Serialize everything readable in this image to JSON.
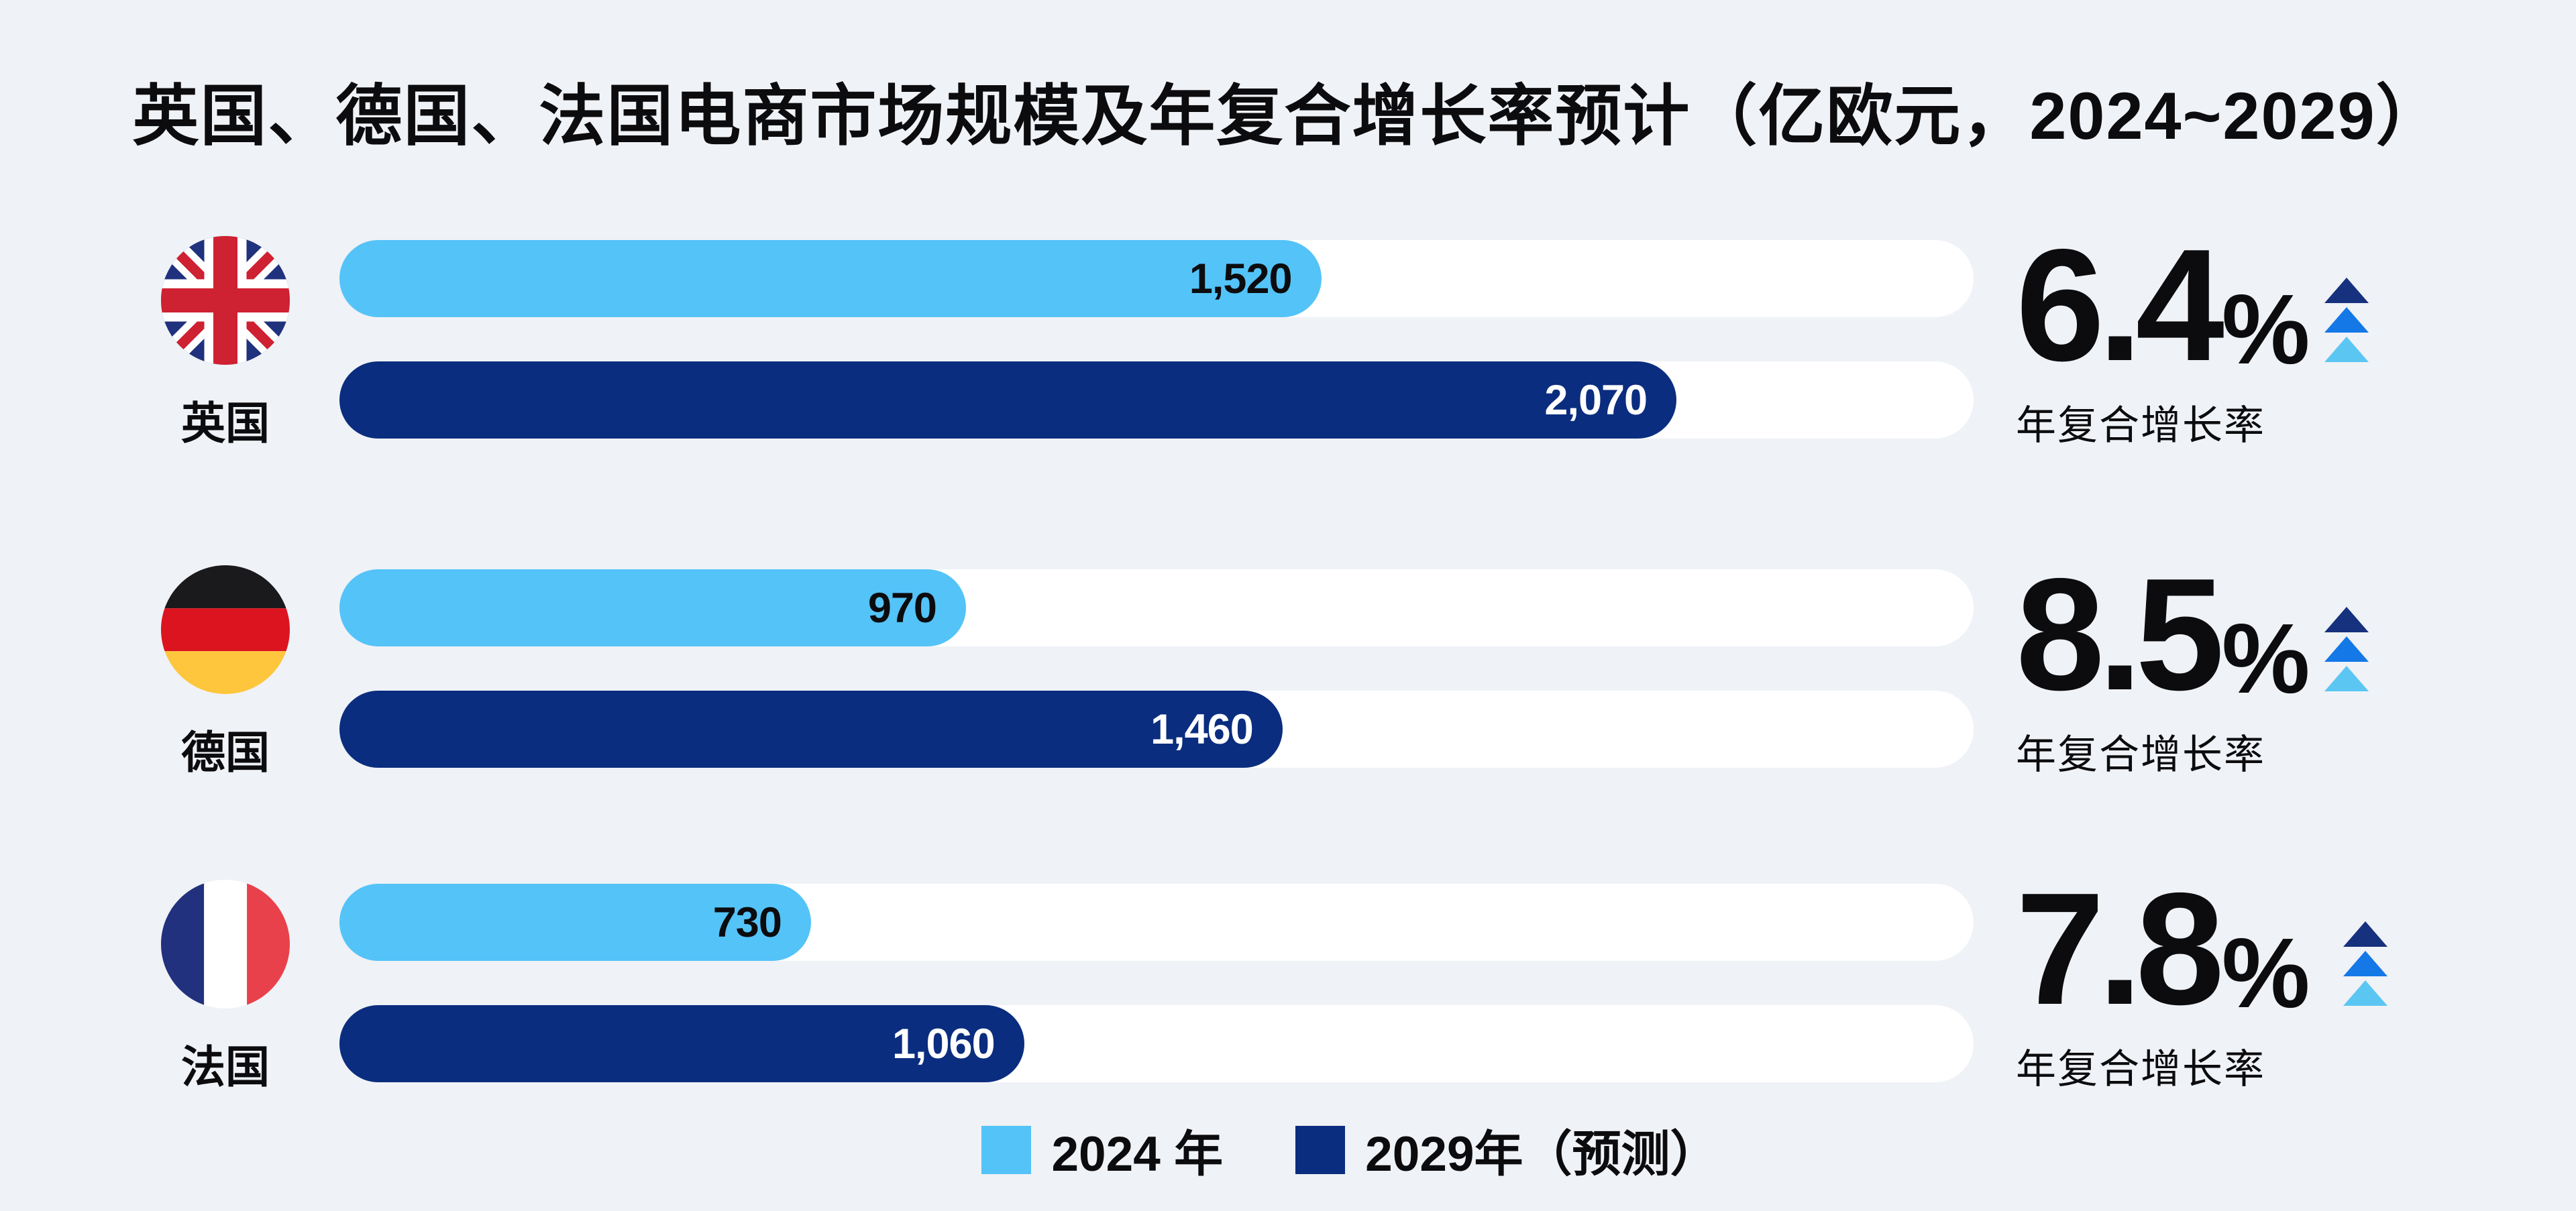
{
  "title": "英国、德国、法国电商市场规模及年复合增长率预计（亿欧元，2024~2029）",
  "colors": {
    "background": "#eff2f6",
    "bar_2024": "#54c3f8",
    "bar_2029": "#0b2d7f",
    "track": "#ffffff",
    "value_on_light": "#0c0c0e",
    "value_on_dark": "#ffffff",
    "arrow_top": "#16317d",
    "arrow_middle": "#1478e6",
    "arrow_bottom": "#5cc6f3"
  },
  "chart_data": {
    "type": "bar",
    "orientation": "horizontal",
    "title": "英国、德国、法国电商市场规模及年复合增长率预计（亿欧元，2024~2029）",
    "unit": "亿欧元",
    "categories": [
      "英国",
      "德国",
      "法国"
    ],
    "series": [
      {
        "name": "2024 年",
        "color": "#54c3f8",
        "values": [
          1520,
          970,
          730
        ]
      },
      {
        "name": "2029年（预测）",
        "color": "#0b2d7f",
        "values": [
          2070,
          1460,
          1060
        ]
      }
    ],
    "cagr": [
      {
        "category": "英国",
        "value": 6.4,
        "unit": "%",
        "label": "年复合增长率"
      },
      {
        "category": "德国",
        "value": 8.5,
        "unit": "%",
        "label": "年复合增长率"
      },
      {
        "category": "法国",
        "value": 7.8,
        "unit": "%",
        "label": "年复合增长率"
      }
    ],
    "xmax": 2530,
    "grid": false,
    "legend_position": "bottom"
  },
  "rows": [
    {
      "country": "英国",
      "value_2024": "1,520",
      "value_2029": "2,070",
      "cagr_value": "6.4",
      "cagr_percent": "%",
      "cagr_label": "年复合增长率"
    },
    {
      "country": "德国",
      "value_2024": "970",
      "value_2029": "1,460",
      "cagr_value": "8.5",
      "cagr_percent": "%",
      "cagr_label": "年复合增长率"
    },
    {
      "country": "法国",
      "value_2024": "730",
      "value_2029": "1,060",
      "cagr_value": "7.8",
      "cagr_percent": "%",
      "cagr_label": "年复合增长率"
    }
  ],
  "legend": [
    {
      "label": "2024 年",
      "color": "#54c3f8"
    },
    {
      "label": "2029年（预测）",
      "color": "#0b2d7f"
    }
  ]
}
